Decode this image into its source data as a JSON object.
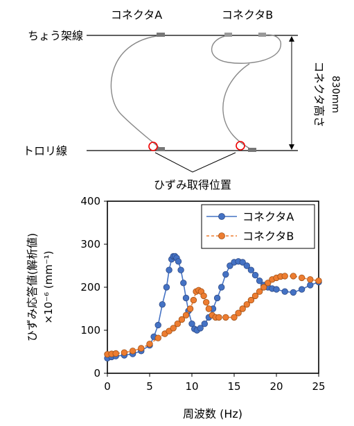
{
  "diagram": {
    "connector_a_label": "コネクタA",
    "connector_b_label": "コネクタB",
    "messenger_wire_label": "ちょう架線",
    "contact_wire_label": "トロリ線",
    "height_label": "コネクタ高さ",
    "height_value": "830mm",
    "strain_position_label": "ひずみ取得位置"
  },
  "chart_data": {
    "type": "line",
    "xlabel": "周波数 (Hz)",
    "ylabel": "ひずみ応答値(解析値)\n×10⁻⁶ (mm⁻¹)",
    "xlim": [
      0,
      25
    ],
    "ylim": [
      0,
      400
    ],
    "xticks": [
      0,
      5,
      10,
      15,
      20,
      25
    ],
    "yticks": [
      0,
      100,
      200,
      300,
      400
    ],
    "legend_position": "top-right",
    "grid": false,
    "series": [
      {
        "name": "コネクタA",
        "color": "#4472C4",
        "line_style": "solid",
        "points": [
          [
            0,
            35
          ],
          [
            0.5,
            38
          ],
          [
            1,
            40
          ],
          [
            2,
            42
          ],
          [
            3,
            45
          ],
          [
            4,
            52
          ],
          [
            5,
            65
          ],
          [
            5.5,
            85
          ],
          [
            6,
            112
          ],
          [
            6.5,
            160
          ],
          [
            7,
            200
          ],
          [
            7.3,
            240
          ],
          [
            7.6,
            265
          ],
          [
            7.8,
            272
          ],
          [
            8,
            272
          ],
          [
            8.2,
            268
          ],
          [
            8.4,
            260
          ],
          [
            8.7,
            240
          ],
          [
            9,
            210
          ],
          [
            9.3,
            175
          ],
          [
            9.6,
            145
          ],
          [
            10,
            115
          ],
          [
            10.3,
            103
          ],
          [
            10.6,
            100
          ],
          [
            11,
            105
          ],
          [
            11.5,
            115
          ],
          [
            12,
            130
          ],
          [
            12.5,
            150
          ],
          [
            13,
            175
          ],
          [
            13.5,
            200
          ],
          [
            14,
            230
          ],
          [
            14.5,
            250
          ],
          [
            15,
            258
          ],
          [
            15.5,
            260
          ],
          [
            16,
            258
          ],
          [
            16.5,
            250
          ],
          [
            17,
            240
          ],
          [
            17.5,
            228
          ],
          [
            18,
            215
          ],
          [
            18.5,
            205
          ],
          [
            19,
            200
          ],
          [
            19.5,
            197
          ],
          [
            20,
            195
          ],
          [
            21,
            190
          ],
          [
            22,
            188
          ],
          [
            23,
            195
          ],
          [
            24,
            205
          ],
          [
            25,
            212
          ]
        ]
      },
      {
        "name": "コネクタB",
        "color": "#ED7D31",
        "line_style": "dashed",
        "points": [
          [
            0,
            44
          ],
          [
            0.5,
            45
          ],
          [
            1,
            46
          ],
          [
            2,
            48
          ],
          [
            3,
            52
          ],
          [
            4,
            58
          ],
          [
            5,
            68
          ],
          [
            6,
            82
          ],
          [
            6.8,
            92
          ],
          [
            7.3,
            98
          ],
          [
            7.8,
            105
          ],
          [
            8.3,
            115
          ],
          [
            8.8,
            125
          ],
          [
            9.3,
            135
          ],
          [
            9.8,
            150
          ],
          [
            10.2,
            170
          ],
          [
            10.5,
            190
          ],
          [
            10.8,
            193
          ],
          [
            11.1,
            190
          ],
          [
            11.4,
            180
          ],
          [
            11.7,
            165
          ],
          [
            12,
            150
          ],
          [
            12.4,
            135
          ],
          [
            12.8,
            130
          ],
          [
            13.2,
            130
          ],
          [
            14,
            130
          ],
          [
            15,
            130
          ],
          [
            15.5,
            140
          ],
          [
            16,
            150
          ],
          [
            16.5,
            160
          ],
          [
            17,
            170
          ],
          [
            17.5,
            180
          ],
          [
            18,
            190
          ],
          [
            18.5,
            200
          ],
          [
            19,
            210
          ],
          [
            19.5,
            218
          ],
          [
            20,
            222
          ],
          [
            20.5,
            225
          ],
          [
            21,
            226
          ],
          [
            22,
            226
          ],
          [
            23,
            222
          ],
          [
            24,
            218
          ],
          [
            25,
            215
          ]
        ]
      }
    ]
  }
}
